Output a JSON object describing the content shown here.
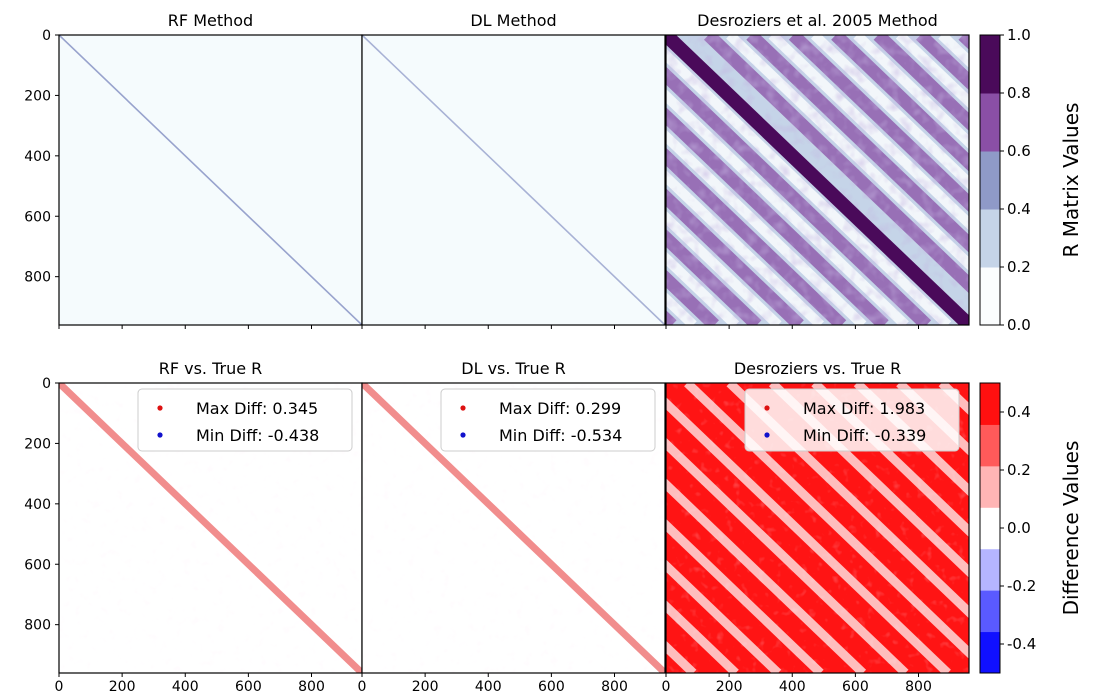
{
  "chart_data": [
    {
      "type": "heatmap",
      "title": "RF Method",
      "row": "top",
      "pattern": "thin-diagonal",
      "diag_value": 0.3,
      "x_ticks": [],
      "y_ticks": [
        "0",
        "200",
        "400",
        "600",
        "800"
      ],
      "xlim": [
        0,
        960
      ],
      "ylim": [
        960,
        0
      ]
    },
    {
      "type": "heatmap",
      "title": "DL Method",
      "row": "top",
      "pattern": "thin-diagonal",
      "diag_value": 0.25,
      "x_ticks": [],
      "y_ticks": [],
      "xlim": [
        0,
        960
      ],
      "ylim": [
        960,
        0
      ]
    },
    {
      "type": "heatmap",
      "title": "Desroziers et al. 2005 Method",
      "row": "top",
      "pattern": "banded",
      "diag_value": 1.0,
      "x_ticks": [],
      "y_ticks": [],
      "xlim": [
        0,
        960
      ],
      "ylim": [
        960,
        0
      ]
    },
    {
      "type": "heatmap",
      "title": "RF vs. True R",
      "row": "bottom",
      "pattern": "diff-diagonal",
      "legend": [
        {
          "label": "Max Diff: 0.345",
          "color": "#dd1111"
        },
        {
          "label": "Min Diff: -0.438",
          "color": "#1111cc"
        }
      ],
      "max_diff": 0.345,
      "min_diff": -0.438,
      "x_ticks": [
        "0",
        "200",
        "400",
        "600",
        "800"
      ],
      "y_ticks": [
        "0",
        "200",
        "400",
        "600",
        "800"
      ],
      "xlim": [
        0,
        960
      ],
      "ylim": [
        960,
        0
      ]
    },
    {
      "type": "heatmap",
      "title": "DL vs. True R",
      "row": "bottom",
      "pattern": "diff-diagonal",
      "legend": [
        {
          "label": "Max Diff: 0.299",
          "color": "#dd1111"
        },
        {
          "label": "Min Diff: -0.534",
          "color": "#1111cc"
        }
      ],
      "max_diff": 0.299,
      "min_diff": -0.534,
      "x_ticks": [
        "0",
        "200",
        "400",
        "600",
        "800"
      ],
      "y_ticks": [],
      "xlim": [
        0,
        960
      ],
      "ylim": [
        960,
        0
      ]
    },
    {
      "type": "heatmap",
      "title": "Desroziers vs. True R",
      "row": "bottom",
      "pattern": "diff-banded",
      "legend": [
        {
          "label": "Max Diff: 1.983",
          "color": "#dd1111"
        },
        {
          "label": "Min Diff: -0.339",
          "color": "#1111cc"
        }
      ],
      "max_diff": 1.983,
      "min_diff": -0.339,
      "x_ticks": [
        "0",
        "200",
        "400",
        "600",
        "800"
      ],
      "y_ticks": [],
      "xlim": [
        0,
        960
      ],
      "ylim": [
        960,
        0
      ]
    }
  ],
  "colorbars": [
    {
      "label": "R Matrix Values",
      "ticks": [
        "0.0",
        "0.2",
        "0.4",
        "0.6",
        "0.8",
        "1.0"
      ],
      "range": [
        0.0,
        1.0
      ],
      "levels": [
        "#fbfdfe",
        "#c5d4e8",
        "#8f9ac8",
        "#8a4fa6",
        "#4a0a5a"
      ]
    },
    {
      "label": "Difference Values",
      "ticks": [
        "-0.4",
        "-0.2",
        "0.0",
        "0.2",
        "0.4"
      ],
      "range": [
        -0.5,
        0.5
      ],
      "levels": [
        "#1010ff",
        "#5a5aff",
        "#b5b5ff",
        "#ffffff",
        "#ffb5b5",
        "#ff5a5a",
        "#ff1010"
      ]
    }
  ]
}
